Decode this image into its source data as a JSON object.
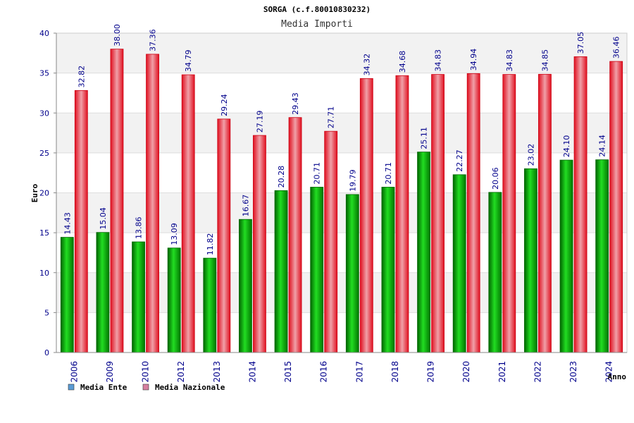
{
  "colors": {
    "ente_fill": "#00b000",
    "ente_dark": "#005500",
    "nazionale_fill": "#e8313a",
    "nazionale_light": "#f4a3a8",
    "band": "#f2f2f2",
    "axis": "#999999",
    "tick_text": "#00008b",
    "legend_ente": "#5b9bd5",
    "legend_nazionale": "#d67fa0"
  },
  "chart_data": {
    "type": "bar",
    "title": "SORGA (c.f.80010830232)",
    "subtitle": "Media Importi",
    "xlabel": "Anno",
    "ylabel": "Euro",
    "ylim": [
      0,
      40
    ],
    "yticks": [
      0,
      5,
      10,
      15,
      20,
      25,
      30,
      35,
      40
    ],
    "grid": true,
    "legend_position": "bottom-left",
    "categories": [
      "2006",
      "2009",
      "2010",
      "2012",
      "2013",
      "2014",
      "2015",
      "2016",
      "2017",
      "2018",
      "2019",
      "2020",
      "2021",
      "2022",
      "2023",
      "2024"
    ],
    "series": [
      {
        "name": "Media Ente",
        "values": [
          14.43,
          15.04,
          13.86,
          13.09,
          11.82,
          16.67,
          20.28,
          20.71,
          19.79,
          20.71,
          25.11,
          22.27,
          20.06,
          23.02,
          24.1,
          24.14
        ],
        "labels": [
          "14.43",
          "15.04",
          "13.86",
          "13.09",
          "11.82",
          "16.67",
          "20.28",
          "20.71",
          "19.79",
          "20.71",
          "25.11",
          "22.27",
          "20.06",
          "23.02",
          "24.10",
          "24.14"
        ]
      },
      {
        "name": "Media Nazionale",
        "values": [
          32.82,
          38.0,
          37.36,
          34.79,
          29.24,
          27.19,
          29.43,
          27.71,
          34.32,
          34.68,
          34.83,
          34.94,
          34.83,
          34.85,
          37.05,
          36.46
        ],
        "labels": [
          "32.82",
          "38.00",
          "37.36",
          "34.79",
          "29.24",
          "27.19",
          "29.43",
          "27.71",
          "34.32",
          "34.68",
          "34.83",
          "34.94",
          "34.83",
          "34.85",
          "37.05",
          "36.46"
        ]
      }
    ]
  }
}
